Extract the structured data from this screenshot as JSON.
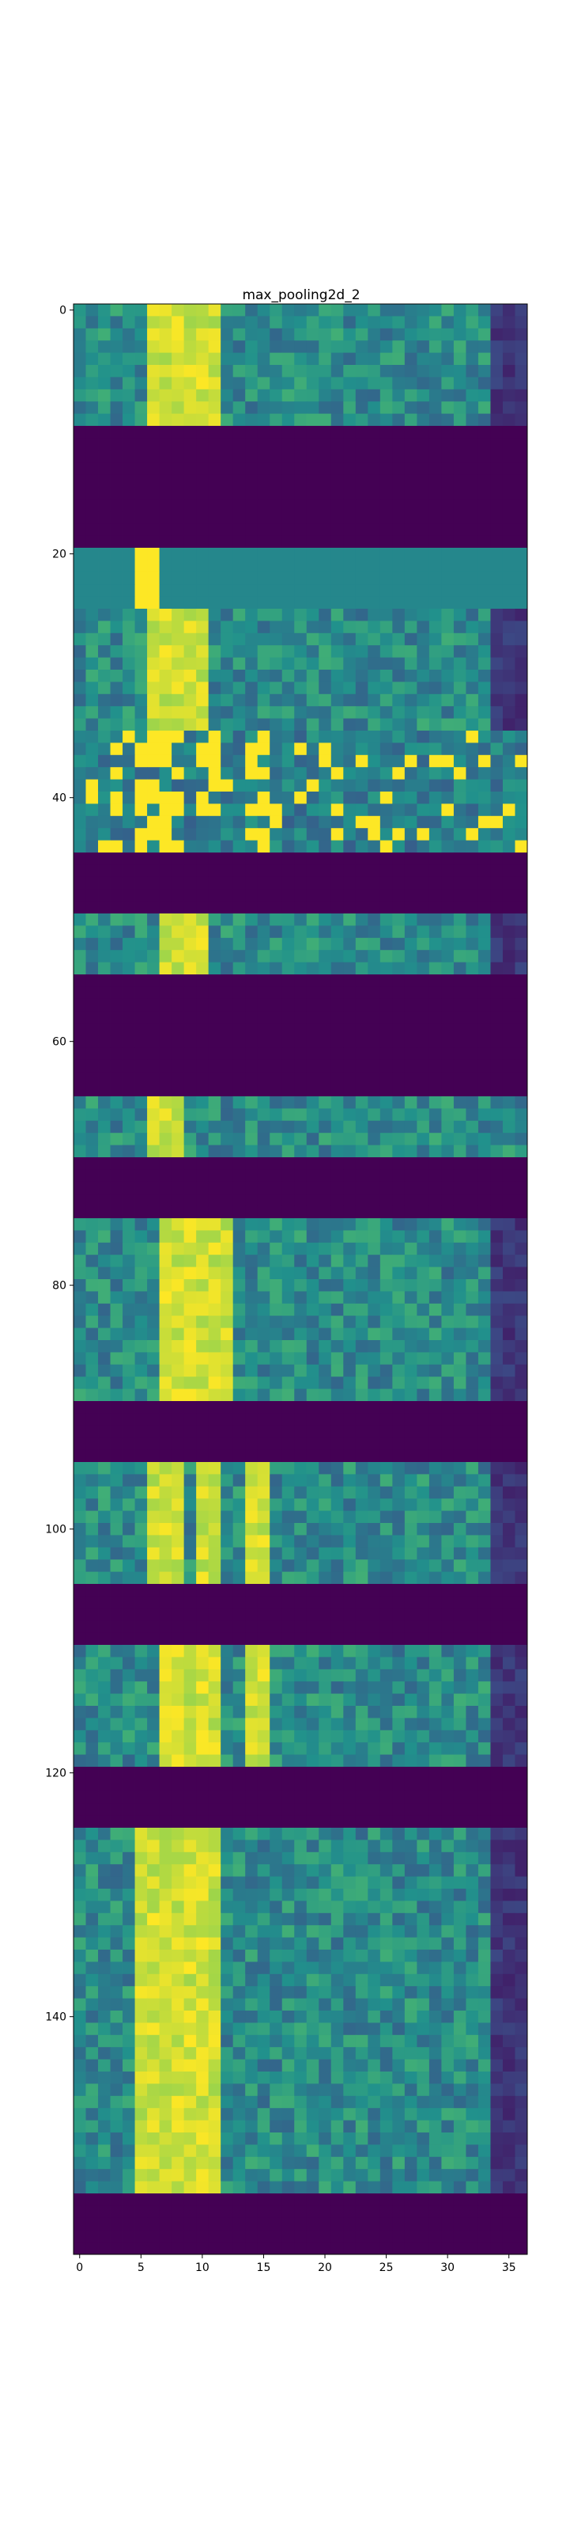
{
  "chart_data": {
    "type": "heatmap",
    "title": "max_pooling2d_2",
    "colormap": "viridis",
    "xlim": [
      -0.5,
      36.5
    ],
    "ylim": [
      159.5,
      -0.5
    ],
    "xticks": [
      0,
      5,
      10,
      15,
      20,
      25,
      30,
      35
    ],
    "yticks": [
      0,
      20,
      40,
      60,
      80,
      100,
      120,
      140
    ],
    "value_range": [
      0,
      1
    ],
    "n_rows": 160,
    "n_cols": 37,
    "blocks": [
      {
        "rows": [
          0,
          9
        ],
        "kind": "noisy",
        "bright": [
          [
            6,
            11
          ]
        ],
        "right": "purple"
      },
      {
        "rows": [
          10,
          19
        ],
        "kind": "empty"
      },
      {
        "rows": [
          20,
          24
        ],
        "kind": "flat",
        "bright": [
          [
            5,
            6
          ]
        ]
      },
      {
        "rows": [
          25,
          34
        ],
        "kind": "noisy",
        "bright": [
          [
            6,
            10
          ]
        ],
        "right": "purple"
      },
      {
        "rows": [
          35,
          44
        ],
        "kind": "spotty",
        "bright": [
          [
            5,
            8
          ],
          [
            10,
            11
          ],
          [
            14,
            15
          ]
        ]
      },
      {
        "rows": [
          45,
          49
        ],
        "kind": "empty"
      },
      {
        "rows": [
          50,
          54
        ],
        "kind": "noisy",
        "bright": [
          [
            7,
            10
          ]
        ],
        "right": "purple"
      },
      {
        "rows": [
          55,
          64
        ],
        "kind": "empty"
      },
      {
        "rows": [
          65,
          69
        ],
        "kind": "noisy",
        "bright": [
          [
            6,
            8
          ]
        ]
      },
      {
        "rows": [
          70,
          74
        ],
        "kind": "empty"
      },
      {
        "rows": [
          75,
          89
        ],
        "kind": "noisy",
        "bright": [
          [
            7,
            12
          ]
        ],
        "right": "purple"
      },
      {
        "rows": [
          90,
          94
        ],
        "kind": "empty"
      },
      {
        "rows": [
          95,
          104
        ],
        "kind": "noisy",
        "bright": [
          [
            6,
            8
          ],
          [
            10,
            11
          ],
          [
            14,
            15
          ]
        ],
        "right": "purple"
      },
      {
        "rows": [
          105,
          109
        ],
        "kind": "empty"
      },
      {
        "rows": [
          110,
          119
        ],
        "kind": "noisy",
        "bright": [
          [
            7,
            11
          ],
          [
            14,
            15
          ]
        ],
        "right": "purple"
      },
      {
        "rows": [
          120,
          124
        ],
        "kind": "empty"
      },
      {
        "rows": [
          125,
          159
        ],
        "kind": "noisy",
        "bright": [
          [
            5,
            11
          ]
        ],
        "right": "purple",
        "bottom_empty_from": 155
      }
    ]
  }
}
